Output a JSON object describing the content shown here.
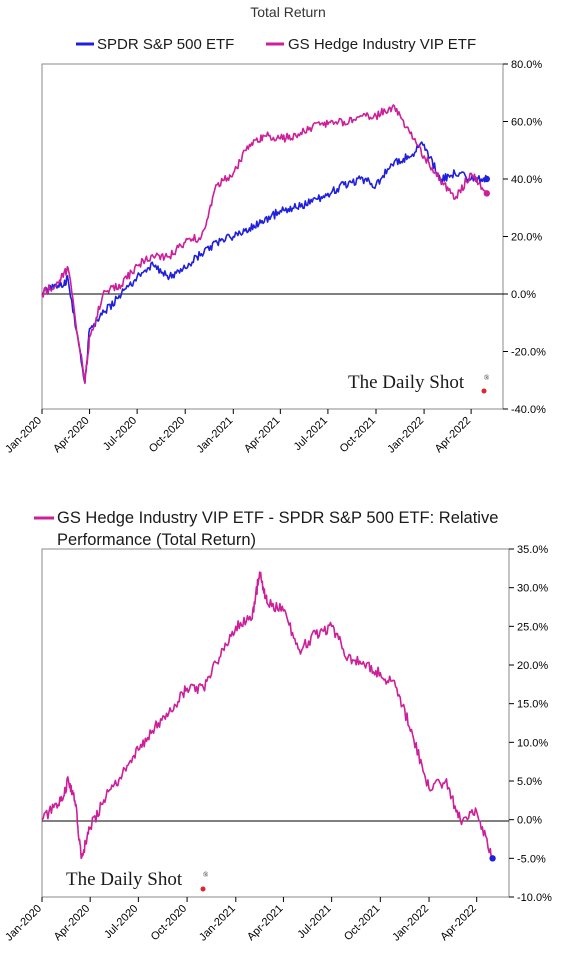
{
  "chart_data": [
    {
      "type": "line",
      "title": "Total Return",
      "brand": "The Daily Shot",
      "brand_mark": "®",
      "ylim": [
        -0.4,
        0.8
      ],
      "yticks": [
        "80.0%",
        "60.0%",
        "40.0%",
        "20.0%",
        "0.0%",
        "-20.0%",
        "-40.0%"
      ],
      "x_ticks": [
        "Jan-2020",
        "Apr-2020",
        "Jul-2020",
        "Oct-2020",
        "Jan-2021",
        "Apr-2021",
        "Jul-2021",
        "Oct-2021",
        "Jan-2022",
        "Apr-2022"
      ],
      "x": [
        "2020-01",
        "2020-02",
        "2020-02-20",
        "2020-03-23",
        "2020-04",
        "2020-05",
        "2020-06",
        "2020-07",
        "2020-08",
        "2020-09",
        "2020-10",
        "2020-11",
        "2020-12",
        "2021-01",
        "2021-02",
        "2021-03",
        "2021-04",
        "2021-05",
        "2021-06",
        "2021-07",
        "2021-08",
        "2021-09",
        "2021-10",
        "2021-11",
        "2021-12",
        "2022-01",
        "2022-02",
        "2022-03",
        "2022-04",
        "2022-05"
      ],
      "series": [
        {
          "name": "SPDR S&P 500 ETF",
          "color": "#1f1fdc",
          "values": [
            0.0,
            0.03,
            0.05,
            -0.31,
            -0.12,
            -0.06,
            0.0,
            0.06,
            0.1,
            0.06,
            0.09,
            0.14,
            0.18,
            0.2,
            0.23,
            0.25,
            0.29,
            0.3,
            0.32,
            0.35,
            0.38,
            0.4,
            0.38,
            0.45,
            0.48,
            0.52,
            0.4,
            0.42,
            0.4,
            0.4
          ]
        },
        {
          "name": "GS Hedge Industry VIP ETF",
          "color": "#cc1f99",
          "values": [
            0.0,
            0.04,
            0.09,
            -0.31,
            -0.15,
            0.01,
            0.03,
            0.1,
            0.13,
            0.13,
            0.18,
            0.2,
            0.38,
            0.42,
            0.52,
            0.55,
            0.54,
            0.55,
            0.58,
            0.59,
            0.6,
            0.62,
            0.62,
            0.65,
            0.58,
            0.48,
            0.4,
            0.33,
            0.42,
            0.35
          ]
        }
      ]
    },
    {
      "type": "line",
      "title": "GS Hedge Industry VIP ETF - SPDR S&P 500 ETF:   Relative Performance (Total Return)",
      "brand": "The Daily Shot",
      "brand_mark": "®",
      "ylim": [
        -0.1,
        0.35
      ],
      "yticks": [
        "35.0%",
        "30.0%",
        "25.0%",
        "20.0%",
        "15.0%",
        "10.0%",
        "5.0%",
        "0.0%",
        "-5.0%",
        "-10.0%"
      ],
      "x_ticks": [
        "Jan-2020",
        "Apr-2020",
        "Jul-2020",
        "Oct-2020",
        "Jan-2021",
        "Apr-2021",
        "Jul-2021",
        "Oct-2021",
        "Jan-2022",
        "Apr-2022"
      ],
      "x": [
        "2020-01",
        "2020-02",
        "2020-02-20",
        "2020-03-05",
        "2020-03-15",
        "2020-04",
        "2020-05",
        "2020-06",
        "2020-07",
        "2020-08",
        "2020-09",
        "2020-10",
        "2020-11",
        "2020-12",
        "2021-01",
        "2021-02",
        "2021-02-15",
        "2021-03",
        "2021-04",
        "2021-05",
        "2021-06",
        "2021-07",
        "2021-08",
        "2021-09",
        "2021-10",
        "2021-11",
        "2021-12",
        "2022-01",
        "2022-02",
        "2022-03",
        "2022-04",
        "2022-05"
      ],
      "series": [
        {
          "name": "GS Hedge Industry VIP ETF - SPDR S&P 500 ETF:   Relative Performance (Total Return)",
          "color": "#cc1f99",
          "values": [
            0.0,
            0.02,
            0.05,
            0.02,
            -0.05,
            -0.01,
            0.03,
            0.06,
            0.09,
            0.12,
            0.14,
            0.17,
            0.17,
            0.21,
            0.25,
            0.26,
            0.32,
            0.28,
            0.27,
            0.22,
            0.24,
            0.25,
            0.21,
            0.2,
            0.19,
            0.17,
            0.11,
            0.04,
            0.05,
            0.0,
            0.01,
            -0.05
          ]
        }
      ]
    }
  ]
}
